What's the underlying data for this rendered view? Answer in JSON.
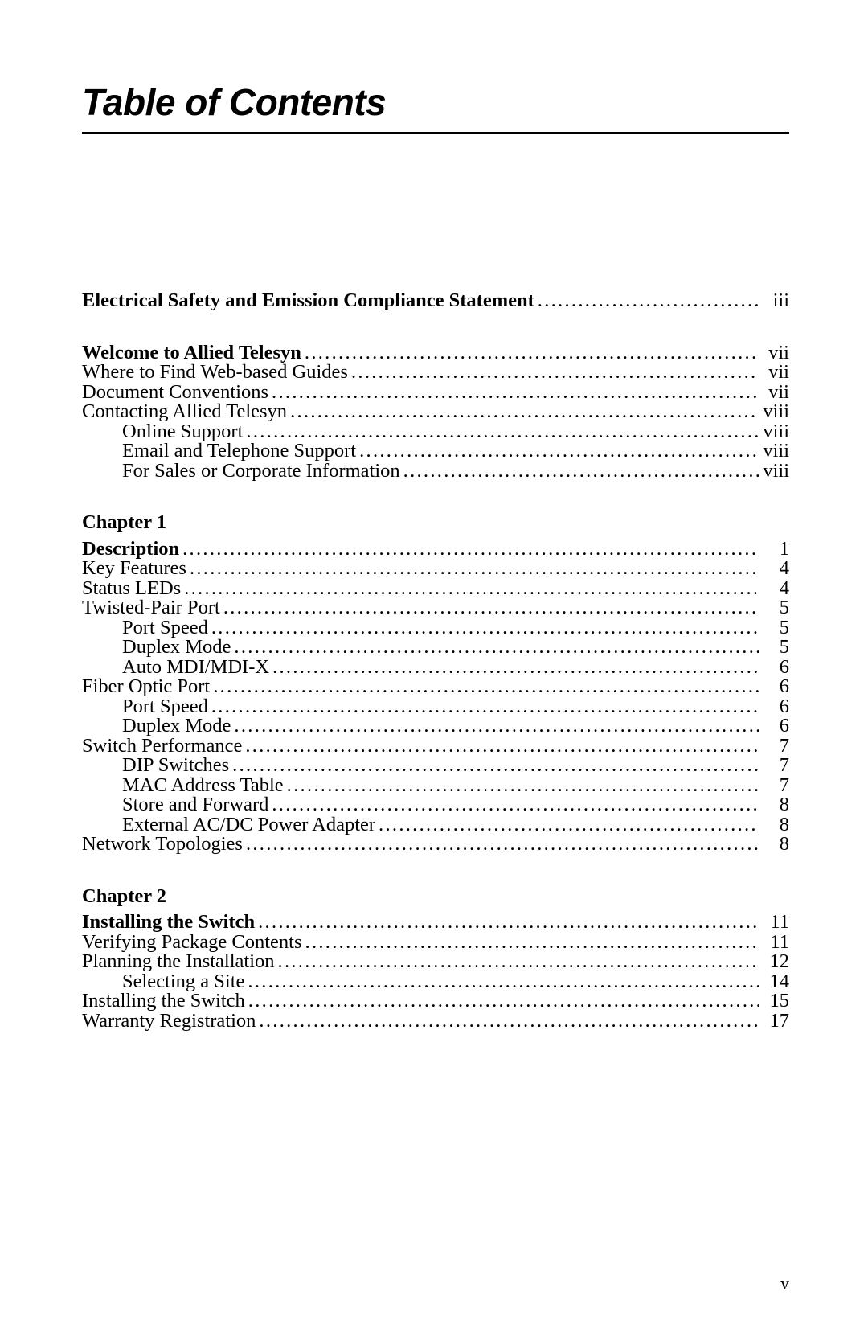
{
  "title": "Table of Contents",
  "page_number": "v",
  "entries": [
    {
      "type": "entry",
      "label": "Electrical Safety and Emission Compliance Statement",
      "page": "iii",
      "bold": true,
      "indent": 0
    },
    {
      "type": "gap",
      "size": "big"
    },
    {
      "type": "entry",
      "label": "Welcome to Allied Telesyn",
      "page": "vii",
      "bold": true,
      "indent": 0
    },
    {
      "type": "entry",
      "label": "Where to Find Web-based Guides",
      "page": "vii",
      "bold": false,
      "indent": 0
    },
    {
      "type": "entry",
      "label": "Document Conventions",
      "page": "vii",
      "bold": false,
      "indent": 0
    },
    {
      "type": "entry",
      "label": "Contacting Allied Telesyn",
      "page": "viii",
      "bold": false,
      "indent": 0
    },
    {
      "type": "entry",
      "label": "Online Support",
      "page": "viii",
      "bold": false,
      "indent": 1
    },
    {
      "type": "entry",
      "label": "Email and Telephone Support",
      "page": "viii",
      "bold": false,
      "indent": 1
    },
    {
      "type": "entry",
      "label": "For Sales or Corporate Information",
      "page": "viii",
      "bold": false,
      "indent": 1
    },
    {
      "type": "gap",
      "size": "big"
    },
    {
      "type": "chapter",
      "label": "Chapter 1"
    },
    {
      "type": "gap",
      "size": "small"
    },
    {
      "type": "entry",
      "label": "Description",
      "page": "1",
      "bold": true,
      "indent": 0
    },
    {
      "type": "entry",
      "label": "Key Features",
      "page": "4",
      "bold": false,
      "indent": 0
    },
    {
      "type": "entry",
      "label": "Status LEDs",
      "page": "4",
      "bold": false,
      "indent": 0
    },
    {
      "type": "entry",
      "label": "Twisted-Pair Port",
      "page": "5",
      "bold": false,
      "indent": 0
    },
    {
      "type": "entry",
      "label": "Port Speed",
      "page": "5",
      "bold": false,
      "indent": 1
    },
    {
      "type": "entry",
      "label": "Duplex Mode",
      "page": "5",
      "bold": false,
      "indent": 1
    },
    {
      "type": "entry",
      "label": "Auto MDI/MDI-X",
      "page": "6",
      "bold": false,
      "indent": 1
    },
    {
      "type": "entry",
      "label": "Fiber Optic Port",
      "page": "6",
      "bold": false,
      "indent": 0
    },
    {
      "type": "entry",
      "label": "Port Speed",
      "page": "6",
      "bold": false,
      "indent": 1
    },
    {
      "type": "entry",
      "label": "Duplex Mode",
      "page": "6",
      "bold": false,
      "indent": 1
    },
    {
      "type": "entry",
      "label": "Switch Performance",
      "page": "7",
      "bold": false,
      "indent": 0
    },
    {
      "type": "entry",
      "label": "DIP Switches",
      "page": "7",
      "bold": false,
      "indent": 1
    },
    {
      "type": "entry",
      "label": "MAC Address Table",
      "page": "7",
      "bold": false,
      "indent": 1
    },
    {
      "type": "entry",
      "label": "Store and Forward",
      "page": "8",
      "bold": false,
      "indent": 1
    },
    {
      "type": "entry",
      "label": "External AC/DC Power Adapter",
      "page": "8",
      "bold": false,
      "indent": 1
    },
    {
      "type": "entry",
      "label": "Network Topologies",
      "page": "8",
      "bold": false,
      "indent": 0
    },
    {
      "type": "gap",
      "size": "big"
    },
    {
      "type": "chapter",
      "label": "Chapter 2"
    },
    {
      "type": "gap",
      "size": "small"
    },
    {
      "type": "entry",
      "label": "Installing the Switch",
      "page": "11",
      "bold": true,
      "indent": 0
    },
    {
      "type": "entry",
      "label": "Verifying Package Contents",
      "page": "11",
      "bold": false,
      "indent": 0
    },
    {
      "type": "entry",
      "label": "Planning the Installation",
      "page": "12",
      "bold": false,
      "indent": 0
    },
    {
      "type": "entry",
      "label": "Selecting a Site",
      "page": "14",
      "bold": false,
      "indent": 1
    },
    {
      "type": "entry",
      "label": "Installing the Switch",
      "page": "15",
      "bold": false,
      "indent": 0
    },
    {
      "type": "entry",
      "label": "Warranty Registration",
      "page": "17",
      "bold": false,
      "indent": 0
    }
  ]
}
